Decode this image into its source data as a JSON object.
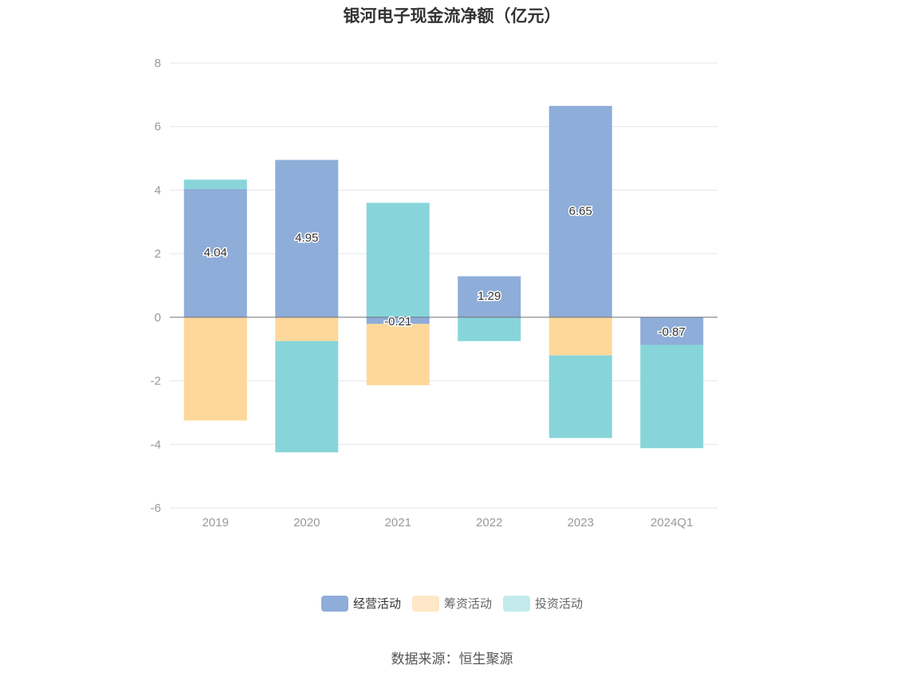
{
  "chart_data": {
    "type": "bar",
    "stacked": true,
    "title": "银河电子现金流净额（亿元）",
    "categories": [
      "2019",
      "2020",
      "2021",
      "2022",
      "2023",
      "2024Q1"
    ],
    "series": [
      {
        "name": "经营活动",
        "values": [
          4.04,
          4.95,
          -0.21,
          1.29,
          6.65,
          -0.87
        ],
        "color": "#8eadd9",
        "legend_color": "#8eadd9"
      },
      {
        "name": "筹资活动",
        "values": [
          -3.25,
          -0.75,
          -1.93,
          0,
          -1.2,
          0
        ],
        "color": "#fed89a",
        "legend_color": "#fee8c7"
      },
      {
        "name": "投资活动",
        "values": [
          0.29,
          -3.5,
          3.6,
          -0.75,
          -2.6,
          -3.25
        ],
        "color": "#87d5da",
        "legend_color": "#c3ebed"
      }
    ],
    "data_labels_series": "经营活动",
    "ylim": [
      -6,
      8
    ],
    "yticks": [
      8,
      6,
      4,
      2,
      0,
      -2,
      -4,
      -6
    ],
    "grid": true,
    "legend_position": "bottom",
    "source": "数据来源：恒生聚源"
  }
}
